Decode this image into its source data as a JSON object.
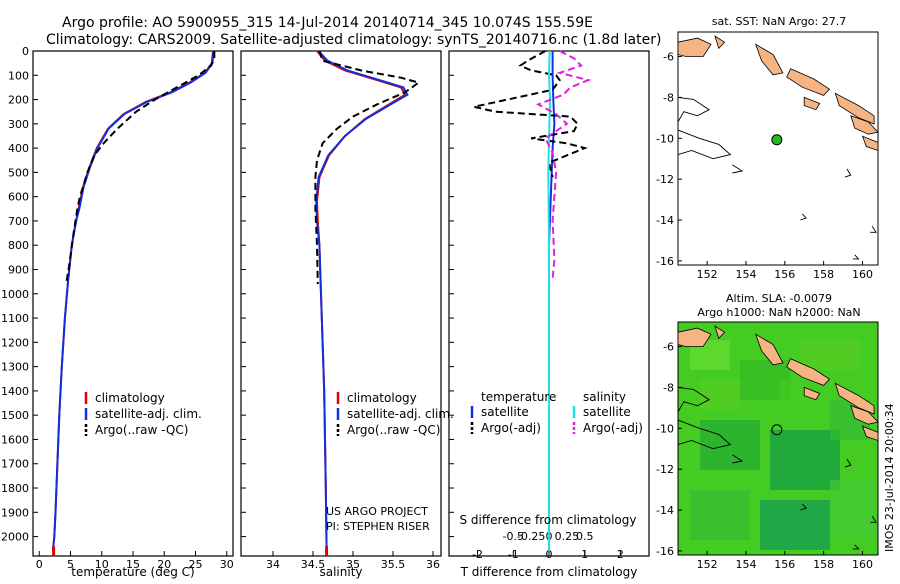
{
  "header": {
    "line1": "Argo profile: AO 5900955_315 14-Jul-2014 20140714_345 10.074S 155.59E",
    "line2": "Climatology: CARS2009. Satellite-adjusted climatology: synTS_20140716.nc (1.8d later)"
  },
  "colors": {
    "clim": "#e00000",
    "sat": "#1030e0",
    "argo": "#000000",
    "sat_salinity": "#20e0e0",
    "argo_salinity": "#e020e0",
    "land": "#f5b482",
    "argo_point": "#22bb22",
    "sla_field": "#44cc22"
  },
  "chart_data": [
    {
      "type": "line",
      "panel": "temperature",
      "xlabel": "temperature (deg C)",
      "ylabel": "",
      "xlim": [
        -1,
        31
      ],
      "ylim": [
        2080,
        0
      ],
      "xticks": [
        0,
        5,
        10,
        15,
        20,
        25,
        30
      ],
      "yticks": [
        0,
        100,
        200,
        300,
        400,
        500,
        600,
        700,
        800,
        900,
        1000,
        1100,
        1200,
        1300,
        1400,
        1500,
        1600,
        1700,
        1800,
        1900,
        2000
      ],
      "legend": [
        "climatology",
        "satellite-adj. clim.",
        "Argo(..raw -QC)"
      ],
      "series": [
        {
          "name": "climatology",
          "color_key": "clim",
          "dash": false,
          "x": [
            27.8,
            27.6,
            26.5,
            24,
            21,
            17,
            13.5,
            11,
            9.2,
            8,
            7,
            6.3,
            5.9,
            5.2,
            4.6,
            4.1,
            3.6,
            3.2,
            2.9,
            2.6,
            2.4,
            2.3,
            2.2
          ],
          "y": [
            0,
            50,
            90,
            130,
            170,
            210,
            260,
            320,
            400,
            480,
            560,
            650,
            700,
            800,
            950,
            1100,
            1300,
            1500,
            1700,
            1900,
            2000,
            2030,
            2060
          ]
        },
        {
          "name": "satellite-adj. clim.",
          "color_key": "sat",
          "dash": false,
          "x": [
            27.9,
            27.7,
            26.6,
            24.2,
            21.2,
            17.2,
            13.6,
            11.1,
            9.3,
            8.1,
            7.1,
            6.4,
            5.9,
            5.2,
            4.6,
            4.1,
            3.6,
            3.2,
            2.9,
            2.6,
            2.4,
            2.3,
            2.2
          ],
          "y": [
            0,
            50,
            90,
            130,
            170,
            210,
            260,
            320,
            400,
            480,
            560,
            650,
            700,
            800,
            950,
            1100,
            1300,
            1500,
            1700,
            1900,
            2000,
            2030,
            2060
          ]
        },
        {
          "name": "Argo(..raw -QC)",
          "color_key": "argo",
          "dash": true,
          "x": [
            28,
            28,
            27.5,
            25.5,
            22,
            18.5,
            15.5,
            12.5,
            10.3,
            8.8,
            7.7,
            7,
            6.5,
            6.1,
            5.5,
            4.8,
            4.3
          ],
          "y": [
            0,
            30,
            60,
            100,
            150,
            200,
            250,
            320,
            380,
            430,
            500,
            560,
            600,
            650,
            750,
            880,
            960
          ]
        }
      ]
    },
    {
      "type": "line",
      "panel": "salinity",
      "xlabel": "salinity",
      "ylabel": "",
      "xlim": [
        33.6,
        36.1
      ],
      "ylim": [
        2080,
        0
      ],
      "xticks": [
        34,
        34.5,
        35,
        35.5,
        36
      ],
      "legend": [
        "climatology",
        "satellite-adj. clim.",
        "Argo(..raw -QC)"
      ],
      "annotations": [
        "US ARGO PROJECT",
        "PI: STEPHEN RISER"
      ],
      "series": [
        {
          "name": "climatology",
          "color_key": "clim",
          "dash": false,
          "x": [
            34.55,
            34.65,
            34.9,
            35.3,
            35.6,
            35.65,
            35.45,
            35.15,
            34.9,
            34.7,
            34.58,
            34.55,
            34.56,
            34.58,
            34.6,
            34.62,
            34.64,
            34.65,
            34.66,
            34.67
          ],
          "y": [
            0,
            40,
            80,
            120,
            150,
            180,
            220,
            280,
            350,
            430,
            520,
            620,
            700,
            800,
            1000,
            1200,
            1400,
            1600,
            1800,
            2060
          ]
        },
        {
          "name": "satellite-adj. clim.",
          "color_key": "sat",
          "dash": false,
          "x": [
            34.57,
            34.68,
            34.93,
            35.33,
            35.63,
            35.68,
            35.47,
            35.16,
            34.9,
            34.69,
            34.57,
            34.54,
            34.55,
            34.58,
            34.6,
            34.62,
            34.64,
            34.65,
            34.66,
            34.67
          ],
          "y": [
            0,
            40,
            80,
            120,
            150,
            180,
            220,
            280,
            350,
            430,
            520,
            620,
            700,
            800,
            1000,
            1200,
            1400,
            1600,
            1800,
            2060
          ]
        },
        {
          "name": "Argo(..raw -QC)",
          "color_key": "argo",
          "dash": true,
          "x": [
            34.58,
            34.62,
            35.1,
            35.6,
            35.82,
            35.65,
            35.3,
            35.0,
            34.8,
            34.62,
            34.55,
            34.53,
            34.53,
            34.55,
            34.56
          ],
          "y": [
            0,
            40,
            80,
            110,
            130,
            170,
            220,
            270,
            320,
            380,
            450,
            520,
            650,
            800,
            960
          ]
        }
      ]
    },
    {
      "type": "line",
      "panel": "difference",
      "xlabel": "T difference from climatology",
      "xlabel_top": "S difference from climatology",
      "xlim": [
        -2.8,
        2.8
      ],
      "ylim": [
        2080,
        0
      ],
      "xticks_T": [
        -2,
        -1,
        0,
        1,
        2
      ],
      "xticks_S": [
        -0.5,
        -0.25,
        0,
        0.25,
        0.5
      ],
      "legend_headings": [
        "temperature",
        "salinity"
      ],
      "legend": [
        "satellite",
        "Argo(-adj)",
        "satellite",
        "Argo(-adj)"
      ],
      "series": [
        {
          "name": "satellite",
          "group": "temperature",
          "color_key": "sat",
          "dash": false,
          "x": [
            0.1,
            0.1,
            0.12,
            0.15,
            0.1,
            0.05,
            0.0,
            0.0,
            0.0,
            0.0
          ],
          "y": [
            0,
            100,
            200,
            300,
            400,
            600,
            800,
            1200,
            1600,
            2060
          ]
        },
        {
          "name": "Argo(-adj)",
          "group": "temperature",
          "color_key": "argo",
          "dash": true,
          "x": [
            -0.1,
            -0.6,
            -0.8,
            -0.5,
            0.2,
            0.3,
            0.1,
            -2.1,
            -1.5,
            0.6,
            0.8,
            0.7,
            -0.5,
            0.5,
            1.0,
            0.0,
            0.1
          ],
          "y": [
            0,
            40,
            60,
            80,
            100,
            120,
            160,
            230,
            250,
            270,
            300,
            330,
            360,
            380,
            400,
            460,
            520
          ]
        },
        {
          "name": "satellite",
          "group": "salinity",
          "color_key": "sat_salinity",
          "dash": false,
          "x": [
            0.02,
            0.0,
            0.03,
            0.01,
            -0.02,
            0.0,
            0.0,
            0.0,
            0.0
          ],
          "y": [
            0,
            100,
            200,
            300,
            500,
            800,
            1200,
            1600,
            2060
          ]
        },
        {
          "name": "Argo(-adj)",
          "group": "salinity",
          "color_key": "argo_salinity",
          "dash": true,
          "x": [
            0.3,
            0.7,
            0.9,
            0.3,
            1.1,
            0.6,
            0.4,
            -0.3,
            0.2,
            0.5,
            -0.1,
            0.1,
            0.2,
            0.1,
            0.15,
            0.1
          ],
          "y": [
            0,
            30,
            60,
            90,
            120,
            150,
            180,
            220,
            260,
            300,
            360,
            420,
            500,
            700,
            860,
            940
          ]
        }
      ]
    }
  ],
  "map_sst": {
    "title": "sat. SST: NaN Argo: 27.7",
    "xticks": [
      "152",
      "154",
      "156",
      "158",
      "160"
    ],
    "yticks": [
      "-6",
      "-8",
      "-10",
      "-12",
      "-14",
      "-16"
    ],
    "xlim": [
      150.5,
      160.8
    ],
    "ylim": [
      -16.2,
      -4.8
    ],
    "argo_lon": 155.59,
    "argo_lat": -10.074
  },
  "map_sla": {
    "title1": "Altim. SLA: -0.0079",
    "title2": "Argo h1000: NaN h2000: NaN",
    "xticks": [
      "152",
      "154",
      "156",
      "158",
      "160"
    ],
    "yticks": [
      "-6",
      "-8",
      "-10",
      "-12",
      "-14",
      "-16"
    ],
    "xlim": [
      150.5,
      160.8
    ],
    "ylim": [
      -16.2,
      -4.8
    ],
    "argo_lon": 155.59,
    "argo_lat": -10.074
  },
  "footer": {
    "imos_stamp": "IMOS 23-Jul-2014 20:00:34"
  }
}
